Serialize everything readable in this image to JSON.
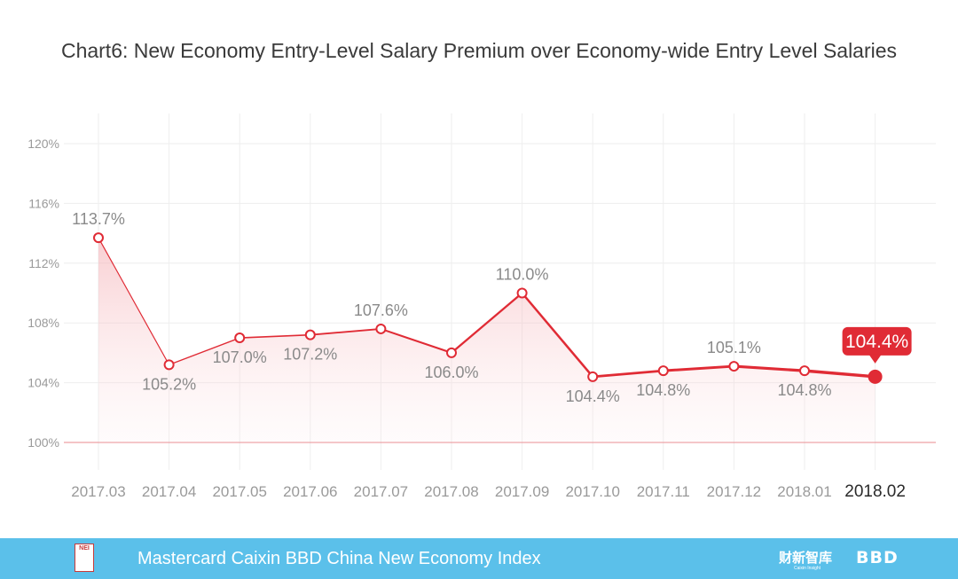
{
  "chart_data": {
    "type": "line",
    "title": "Chart6: New Economy Entry-Level Salary Premium over Economy-wide Entry Level Salaries",
    "categories": [
      "2017.03",
      "2017.04",
      "2017.05",
      "2017.06",
      "2017.07",
      "2017.08",
      "2017.09",
      "2017.10",
      "2017.11",
      "2017.12",
      "2018.01",
      "2018.02"
    ],
    "values": [
      113.7,
      105.2,
      107.0,
      107.2,
      107.6,
      106.0,
      110.0,
      104.4,
      104.8,
      105.1,
      104.8,
      104.4
    ],
    "value_labels": [
      "113.7%",
      "105.2%",
      "107.0%",
      "107.2%",
      "107.6%",
      "106.0%",
      "110.0%",
      "104.4%",
      "104.8%",
      "105.1%",
      "104.8%",
      "104.4%"
    ],
    "yticks": [
      100,
      104,
      108,
      112,
      116,
      120
    ],
    "ytick_labels": [
      "100%",
      "104%",
      "108%",
      "112%",
      "116%",
      "120%"
    ],
    "ylim": [
      100,
      120
    ],
    "grid": true,
    "highlight_last": true,
    "series_color": "#e02b35",
    "fill_color": "#f6c7cb",
    "baseline_color": "#e8888e"
  },
  "footer": {
    "logo_text": "NEI",
    "text": "Mastercard Caixin BBD China New Economy Index",
    "brand_cn": "财新智库",
    "brand_cn_sub": "Caixin Insight",
    "brand_bbd": "BBD",
    "bg_color": "#5bc0ea"
  }
}
